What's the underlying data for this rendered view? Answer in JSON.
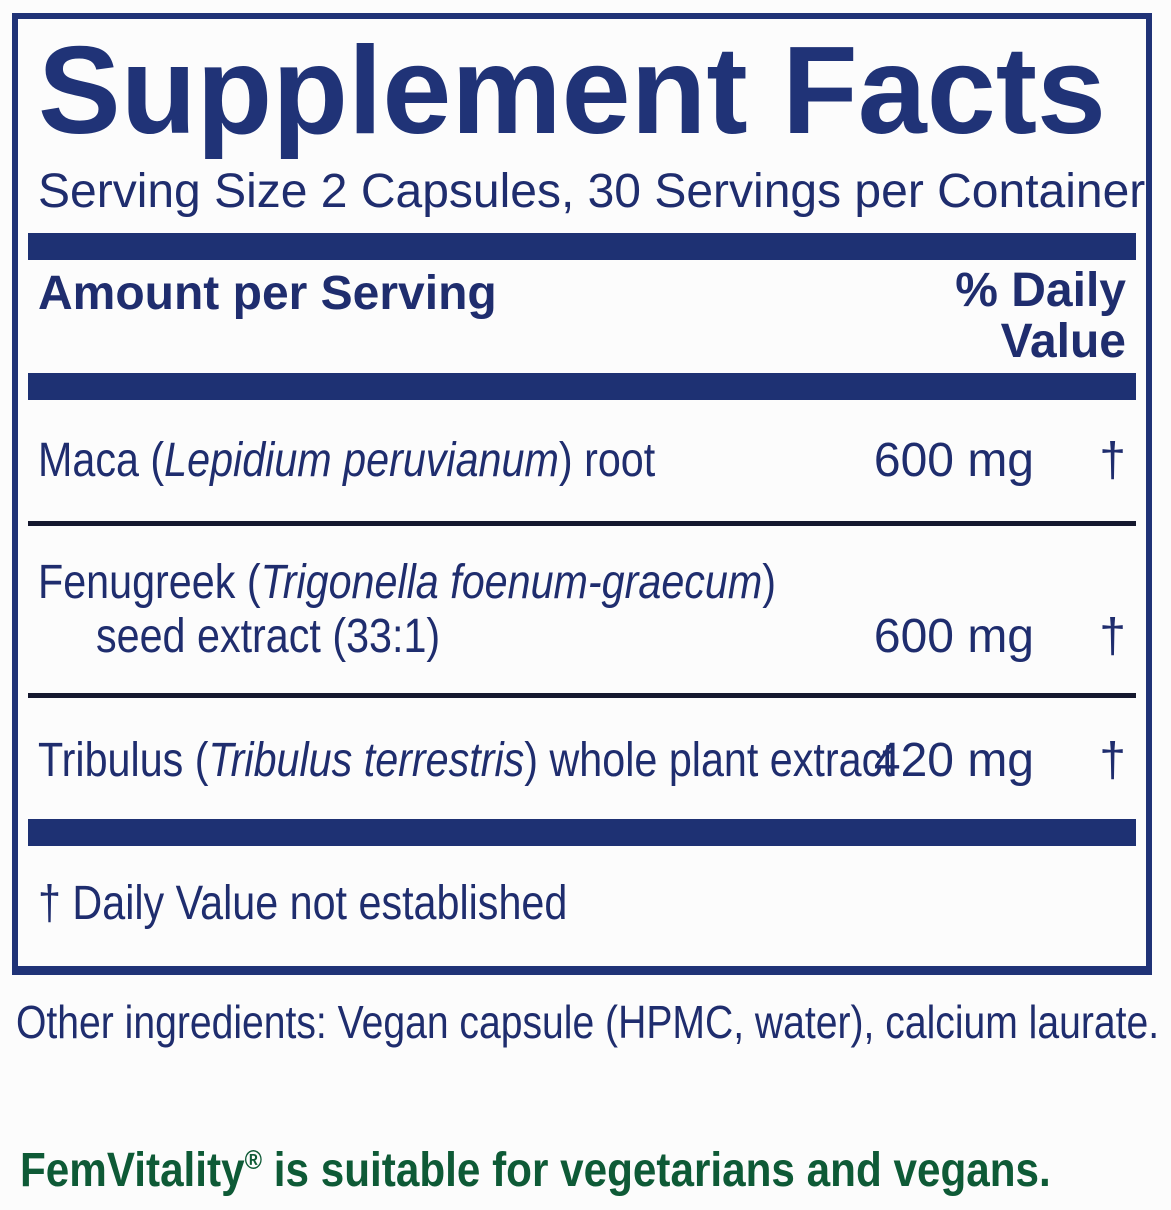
{
  "colors": {
    "navy_solid": "#1e3173",
    "navy_text": "#1f2d6e",
    "green_text": "#0e5a36",
    "thin_rule": "#15182f",
    "background": "#fcfcfc"
  },
  "panel": {
    "title": "Supplement Facts",
    "serving_line": "Serving Size 2 Capsules, 30 Servings per Container",
    "header": {
      "amount_label": "Amount per Serving",
      "daily_value_line1": "% Daily",
      "daily_value_line2": "Value"
    },
    "rows": [
      {
        "name_pre": "Maca (",
        "name_italic": "Lepidium peruvianum",
        "name_post": ") root",
        "amount": "600 mg",
        "daily_value": "†"
      },
      {
        "name_pre": "Fenugreek (",
        "name_italic": "Trigonella foenum-graecum",
        "name_post": ")",
        "name_line2": "seed extract (33:1)",
        "amount": "600 mg",
        "daily_value": "†"
      },
      {
        "name_pre": "Tribulus (",
        "name_italic": "Tribulus terrestris",
        "name_post": ") whole plant extract",
        "amount": "420 mg",
        "daily_value": "†"
      }
    ],
    "footnote": "† Daily Value not established"
  },
  "other_ingredients": "Other ingredients: Vegan capsule (HPMC, water), calcium laurate.",
  "suitability": {
    "brand": "FemVitality",
    "registered_mark": "®",
    "text_after": " is suitable for vegetarians and vegans."
  }
}
